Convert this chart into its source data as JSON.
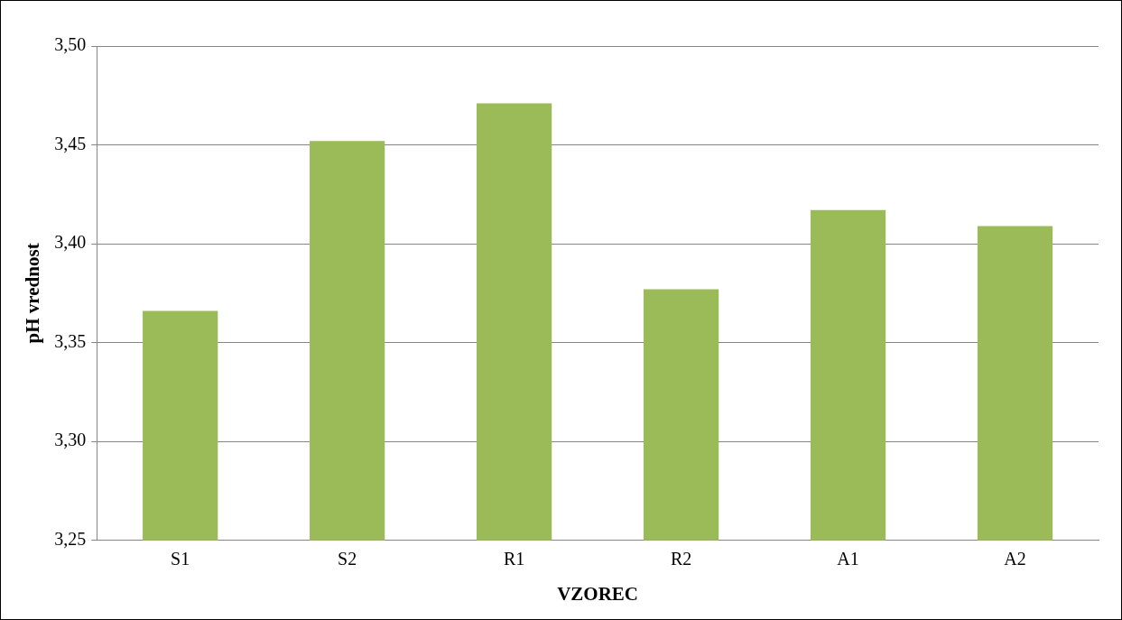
{
  "chart_data": {
    "type": "bar",
    "xlabel": "VZOREC",
    "ylabel": "pH vrednost",
    "categories": [
      "S1",
      "S2",
      "R1",
      "R2",
      "A1",
      "A2"
    ],
    "values": [
      3.366,
      3.452,
      3.471,
      3.377,
      3.417,
      3.409
    ],
    "color": "#9bbb59",
    "ylim": [
      3.25,
      3.5
    ],
    "yticks": [
      {
        "value": 3.25,
        "label": "3,25"
      },
      {
        "value": 3.3,
        "label": "3,30"
      },
      {
        "value": 3.35,
        "label": "3,35"
      },
      {
        "value": 3.4,
        "label": "3,40"
      },
      {
        "value": 3.45,
        "label": "3,45"
      },
      {
        "value": 3.5,
        "label": "3,50"
      }
    ],
    "grid": "y",
    "legend": false
  }
}
